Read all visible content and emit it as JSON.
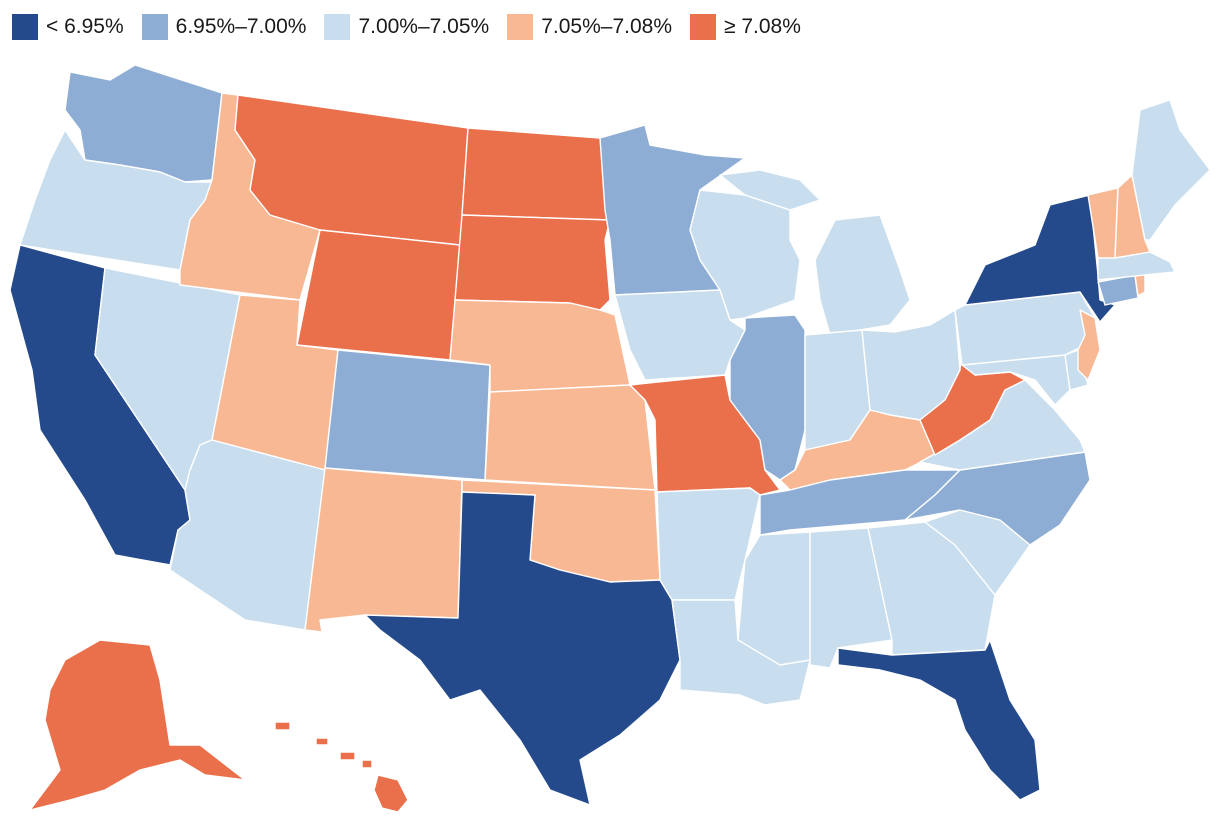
{
  "legend": {
    "items": [
      {
        "key": "c1",
        "label": "< 6.95%",
        "color": "#244a8c"
      },
      {
        "key": "c2",
        "label": "6.95%–7.00%",
        "color": "#8eadd5"
      },
      {
        "key": "c3",
        "label": "7.00%–7.05%",
        "color": "#c8ddee"
      },
      {
        "key": "c4",
        "label": "7.05%–7.08%",
        "color": "#f8b894"
      },
      {
        "key": "c5",
        "label": "≥ 7.08%",
        "color": "#ea6f4b"
      }
    ]
  },
  "state_class": {
    "WA": "c2",
    "OR": "c3",
    "CA": "c1",
    "NV": "c3",
    "ID": "c4",
    "MT": "c5",
    "WY": "c5",
    "UT": "c4",
    "AZ": "c3",
    "CO": "c2",
    "NM": "c4",
    "ND": "c5",
    "SD": "c5",
    "NE": "c4",
    "KS": "c4",
    "OK": "c4",
    "TX": "c1",
    "MN": "c2",
    "IA": "c3",
    "MO": "c5",
    "AR": "c3",
    "LA": "c3",
    "WI": "c3",
    "IL": "c2",
    "MI": "c3",
    "IN": "c3",
    "OH": "c3",
    "KY": "c4",
    "TN": "c2",
    "MS": "c3",
    "AL": "c3",
    "GA": "c3",
    "FL": "c1",
    "SC": "c3",
    "NC": "c2",
    "VA": "c3",
    "WV": "c5",
    "MD": "c3",
    "DE": "c3",
    "NJ": "c4",
    "PA": "c3",
    "NY": "c1",
    "CT": "c2",
    "RI": "c4",
    "MA": "c3",
    "VT": "c4",
    "NH": "c4",
    "ME": "c3",
    "AK": "c5",
    "HI": "c5"
  }
}
